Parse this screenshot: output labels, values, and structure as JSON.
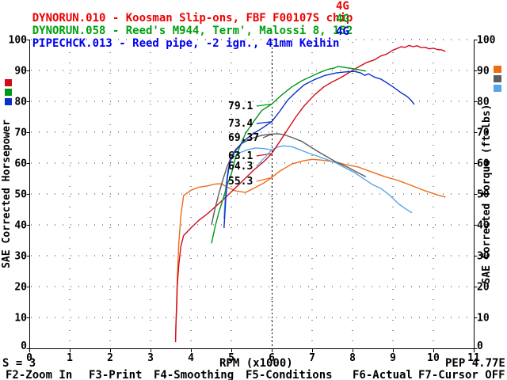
{
  "titles": [
    {
      "label": "DYNORUN.010 - Koosman Slip-ons, FBF F00107S chip",
      "tag": "4G",
      "color": "#ee0000"
    },
    {
      "label": "DYNORUN.058 - Reed's M944, Term', Malossi 8, 152",
      "tag": "4G",
      "color": "#00a010"
    },
    {
      "label": "PIPECHCK.013 - Reed pipe, -2 ign., 41mm Keihin",
      "tag": "4G",
      "color": "#0000ee"
    }
  ],
  "status_bar": {
    "smoothing": "S = 3",
    "program": "PEP 4.77E"
  },
  "function_keys": [
    "F2-Zoom In",
    "F3-Print",
    "F4-Smoothing",
    "F5-Conditions",
    "F6-Actual",
    "F7-Cursor OFF"
  ],
  "chart_data": {
    "type": "line",
    "xlabel": "RPM (x1000)",
    "ylabel_left": "SAE Corrected Horsepower",
    "ylabel_right": "SAE Corrected Torque (ft-lbs)",
    "xlim": [
      0,
      11
    ],
    "ylim_left": [
      0,
      100
    ],
    "ylim_right": [
      0,
      100
    ],
    "x_ticks": [
      0,
      1,
      2,
      3,
      4,
      5,
      6,
      7,
      8,
      9,
      10,
      11
    ],
    "y_ticks": [
      0,
      10,
      20,
      30,
      40,
      50,
      60,
      70,
      80,
      90,
      100
    ],
    "grid": "dotted",
    "legend_position": "swatches-beside-axes",
    "cursor": {
      "x": 6,
      "readouts": [
        {
          "text": "79.1",
          "value": 79.1,
          "series": "run2_hp",
          "color": "#009818"
        },
        {
          "text": "73.4",
          "value": 73.4,
          "series": "run3_hp",
          "color": "#0a30cc"
        },
        {
          "text": "69.37",
          "value": 69.37,
          "series": "run2_torque",
          "color": "#464646"
        },
        {
          "text": "63.1",
          "value": 63.1,
          "series": "run1_hp",
          "color": "#d40a1e"
        },
        {
          "text": "64.3",
          "value": 64.3,
          "series": "run3_torque",
          "color": "#58a4e8"
        },
        {
          "text": "55.3",
          "value": 55.3,
          "series": "run1_torque",
          "color": "#ee6c14"
        }
      ]
    },
    "series": [
      {
        "id": "run1_hp",
        "run": "DYNORUN.010",
        "measure": "horsepower",
        "axis": "hp",
        "color": "#d40a1e",
        "points": [
          [
            3.62,
            2
          ],
          [
            3.63,
            8
          ],
          [
            3.65,
            14
          ],
          [
            3.66,
            20
          ],
          [
            3.7,
            27
          ],
          [
            3.75,
            33
          ],
          [
            3.82,
            36.5
          ],
          [
            4.0,
            39
          ],
          [
            4.2,
            41.5
          ],
          [
            4.4,
            43.5
          ],
          [
            4.6,
            45.8
          ],
          [
            4.8,
            48.2
          ],
          [
            5.05,
            51.3
          ],
          [
            5.3,
            54.5
          ],
          [
            5.55,
            57.7
          ],
          [
            5.8,
            60.4
          ],
          [
            6.0,
            63.1
          ],
          [
            6.2,
            67
          ],
          [
            6.4,
            71
          ],
          [
            6.6,
            75
          ],
          [
            6.8,
            78.5
          ],
          [
            7.05,
            82
          ],
          [
            7.3,
            84.8
          ],
          [
            7.5,
            86.3
          ],
          [
            7.7,
            87.6
          ],
          [
            7.9,
            89.2
          ],
          [
            8.1,
            90.8
          ],
          [
            8.35,
            92.6
          ],
          [
            8.55,
            93.5
          ],
          [
            8.7,
            94.7
          ],
          [
            8.85,
            95.3
          ],
          [
            9.0,
            96.6
          ],
          [
            9.1,
            97.1
          ],
          [
            9.2,
            97.7
          ],
          [
            9.3,
            97.5
          ],
          [
            9.4,
            98.1
          ],
          [
            9.5,
            97.7
          ],
          [
            9.6,
            98
          ],
          [
            9.7,
            97.4
          ],
          [
            9.8,
            97.5
          ],
          [
            9.9,
            97
          ],
          [
            10.0,
            97.2
          ],
          [
            10.1,
            96.8
          ],
          [
            10.2,
            96.7
          ],
          [
            10.3,
            96.2
          ]
        ]
      },
      {
        "id": "run2_hp",
        "run": "DYNORUN.058",
        "measure": "horsepower",
        "axis": "hp",
        "color": "#009818",
        "points": [
          [
            4.51,
            34
          ],
          [
            4.6,
            39.5
          ],
          [
            4.7,
            44.5
          ],
          [
            4.8,
            48.5
          ],
          [
            4.9,
            53
          ],
          [
            5.0,
            56.5
          ],
          [
            5.1,
            61.5
          ],
          [
            5.2,
            65
          ],
          [
            5.35,
            69.5
          ],
          [
            5.5,
            72.5
          ],
          [
            5.75,
            77
          ],
          [
            6.0,
            79.1
          ],
          [
            6.25,
            82.1
          ],
          [
            6.5,
            84.7
          ],
          [
            6.75,
            86.7
          ],
          [
            7.0,
            88.2
          ],
          [
            7.2,
            89.4
          ],
          [
            7.4,
            90.4
          ],
          [
            7.55,
            90.8
          ],
          [
            7.65,
            91.3
          ],
          [
            7.75,
            91.1
          ],
          [
            7.9,
            90.8
          ],
          [
            8.05,
            90.5
          ],
          [
            8.2,
            90.1
          ],
          [
            8.33,
            89.8
          ]
        ]
      },
      {
        "id": "run3_hp",
        "run": "PIPECHCK.013",
        "measure": "horsepower",
        "axis": "hp",
        "color": "#0a30cc",
        "points": [
          [
            4.82,
            39
          ],
          [
            4.86,
            48
          ],
          [
            4.9,
            55
          ],
          [
            4.96,
            60.3
          ],
          [
            5.1,
            64
          ],
          [
            5.3,
            67
          ],
          [
            5.5,
            69.2
          ],
          [
            5.75,
            71.2
          ],
          [
            6.0,
            73.4
          ],
          [
            6.2,
            76.8
          ],
          [
            6.4,
            80.5
          ],
          [
            6.6,
            83
          ],
          [
            6.8,
            85.3
          ],
          [
            7.05,
            87
          ],
          [
            7.3,
            88.3
          ],
          [
            7.6,
            89.2
          ],
          [
            7.8,
            89.5
          ],
          [
            8.05,
            89.7
          ],
          [
            8.2,
            89.2
          ],
          [
            8.3,
            88.4
          ],
          [
            8.4,
            88.9
          ],
          [
            8.55,
            87.8
          ],
          [
            8.7,
            87.2
          ],
          [
            8.85,
            86
          ],
          [
            9.0,
            84.7
          ],
          [
            9.2,
            82.8
          ],
          [
            9.35,
            81.6
          ],
          [
            9.45,
            80.3
          ],
          [
            9.53,
            79
          ]
        ]
      },
      {
        "id": "run1_torque",
        "run": "DYNORUN.010",
        "measure": "torque",
        "axis": "torque",
        "color": "#ee6c14",
        "points": [
          [
            3.62,
            3
          ],
          [
            3.64,
            12
          ],
          [
            3.66,
            22
          ],
          [
            3.7,
            34
          ],
          [
            3.75,
            43
          ],
          [
            3.82,
            49.5
          ],
          [
            4.0,
            51.2
          ],
          [
            4.2,
            52.2
          ],
          [
            4.4,
            52.6
          ],
          [
            4.6,
            53.2
          ],
          [
            4.75,
            53.3
          ],
          [
            4.9,
            52.2
          ],
          [
            5.1,
            51
          ],
          [
            5.35,
            50.5
          ],
          [
            5.55,
            51.8
          ],
          [
            5.8,
            53.5
          ],
          [
            6.0,
            55.3
          ],
          [
            6.2,
            57.4
          ],
          [
            6.5,
            59.7
          ],
          [
            6.8,
            60.8
          ],
          [
            7.0,
            61.2
          ],
          [
            7.2,
            61
          ],
          [
            7.4,
            60.7
          ],
          [
            7.6,
            60.3
          ],
          [
            7.8,
            59.6
          ],
          [
            8.15,
            58.7
          ],
          [
            8.5,
            57
          ],
          [
            8.8,
            55.6
          ],
          [
            9.1,
            54.5
          ],
          [
            9.45,
            52.8
          ],
          [
            9.8,
            51
          ],
          [
            10.1,
            49.7
          ],
          [
            10.3,
            49
          ]
        ]
      },
      {
        "id": "run2_torque",
        "run": "DYNORUN.058",
        "measure": "torque",
        "axis": "torque",
        "color": "#5c5c5c",
        "points": [
          [
            4.51,
            40
          ],
          [
            4.6,
            45.5
          ],
          [
            4.7,
            50.5
          ],
          [
            4.8,
            55
          ],
          [
            4.9,
            59
          ],
          [
            5.0,
            62
          ],
          [
            5.1,
            64.3
          ],
          [
            5.25,
            66.3
          ],
          [
            5.5,
            68
          ],
          [
            5.75,
            69
          ],
          [
            6.0,
            69.4
          ],
          [
            6.15,
            69.5
          ],
          [
            6.3,
            69.2
          ],
          [
            6.5,
            68.3
          ],
          [
            6.75,
            67
          ],
          [
            7.0,
            64.9
          ],
          [
            7.2,
            63.3
          ],
          [
            7.4,
            61.8
          ],
          [
            7.6,
            60.3
          ],
          [
            7.9,
            58.5
          ],
          [
            8.1,
            57.1
          ],
          [
            8.33,
            55.6
          ]
        ]
      },
      {
        "id": "run3_torque",
        "run": "PIPECHCK.013",
        "measure": "torque",
        "axis": "torque",
        "color": "#58a4e8",
        "points": [
          [
            4.82,
            42
          ],
          [
            4.86,
            52
          ],
          [
            4.92,
            58
          ],
          [
            5.0,
            61.5
          ],
          [
            5.2,
            63.3
          ],
          [
            5.4,
            64.3
          ],
          [
            5.6,
            64.9
          ],
          [
            5.8,
            64.7
          ],
          [
            6.0,
            64.3
          ],
          [
            6.15,
            65.2
          ],
          [
            6.3,
            65.6
          ],
          [
            6.5,
            65.3
          ],
          [
            6.7,
            64.3
          ],
          [
            6.9,
            63.3
          ],
          [
            7.1,
            62.4
          ],
          [
            7.35,
            61.2
          ],
          [
            7.6,
            60
          ],
          [
            7.8,
            58.6
          ],
          [
            8.05,
            56.9
          ],
          [
            8.3,
            54.7
          ],
          [
            8.5,
            53
          ],
          [
            8.7,
            51.8
          ],
          [
            8.9,
            49.8
          ],
          [
            9.15,
            46.7
          ],
          [
            9.3,
            45.3
          ],
          [
            9.47,
            43.9
          ]
        ]
      }
    ]
  }
}
